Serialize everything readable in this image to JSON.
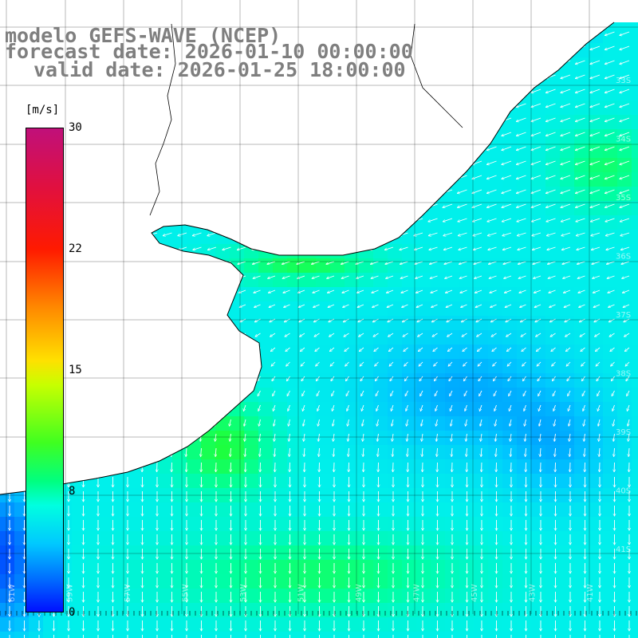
{
  "title": {
    "line1": "modelo GEFS-WAVE (NCEP)",
    "line2": "forecast date: 2026-01-10 00:00:00",
    "line3": "valid date: 2026-01-25 18:00:00"
  },
  "colorbar": {
    "units": "[m/s]",
    "ticks": [
      "30",
      "22",
      "15",
      "8",
      "0"
    ],
    "tick_values": [
      30,
      22,
      15,
      8,
      0
    ],
    "min": 0,
    "max": 30,
    "colors_top_to_bottom": [
      "#c0107a",
      "#ff1a00",
      "#ff8800",
      "#ffe000",
      "#40ff20",
      "#00ffe0",
      "#00c8ff",
      "#0070ff",
      "#0010ff"
    ]
  },
  "map": {
    "lon_labels": [
      "61W",
      "59W",
      "57W",
      "55W",
      "53W",
      "51W",
      "49W",
      "47W",
      "45W",
      "43W",
      "41W"
    ],
    "lat_labels": [
      "33S",
      "34S",
      "35S",
      "36S",
      "37S",
      "38S",
      "39S",
      "40S",
      "41S"
    ],
    "arrow_color": "#ffffff",
    "land_color": "#ffffff",
    "coast_color": "#000000",
    "grid_color": "#000000"
  }
}
